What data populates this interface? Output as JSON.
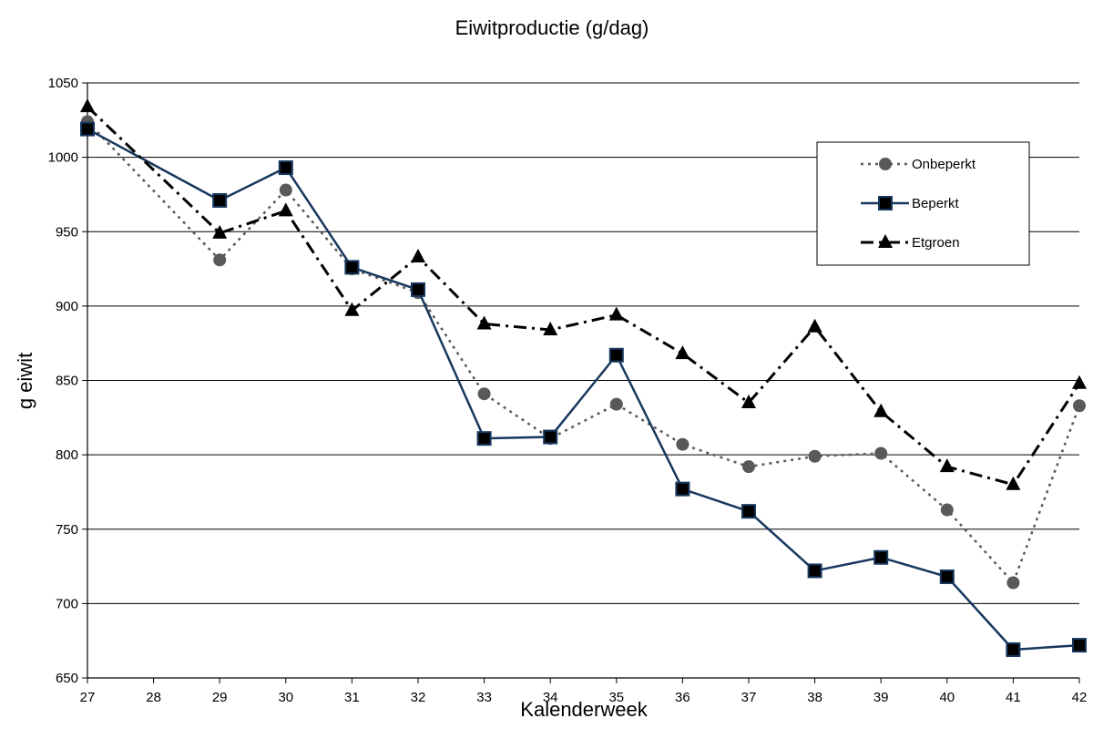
{
  "chart_data": {
    "type": "line",
    "title": "Eiwitproductie (g/dag)",
    "xlabel": "Kalenderweek",
    "ylabel": "g eiwit",
    "ylim": [
      650,
      1050
    ],
    "ytick_step": 50,
    "grid": "horizontal",
    "legend_position": "top-right",
    "categories": [
      "27",
      "28",
      "29",
      "30",
      "31",
      "32",
      "33",
      "34",
      "35",
      "36",
      "37",
      "38",
      "39",
      "40",
      "41",
      "42"
    ],
    "series": [
      {
        "name": "Onbeperkt",
        "color": "#595959",
        "marker": "circle",
        "line": "dotted",
        "values": [
          1024,
          null,
          931,
          978,
          925,
          909,
          841,
          811,
          834,
          807,
          792,
          799,
          801,
          763,
          714,
          833
        ]
      },
      {
        "name": "Beperkt",
        "color": "#17375e",
        "marker": "square",
        "line": "solid",
        "values": [
          1019,
          null,
          971,
          993,
          926,
          911,
          811,
          812,
          867,
          777,
          762,
          722,
          731,
          718,
          669,
          672
        ]
      },
      {
        "name": "Etgroen",
        "color": "#000000",
        "marker": "triangle",
        "line": "dashdot",
        "values": [
          1034,
          null,
          949,
          964,
          897,
          933,
          888,
          884,
          894,
          868,
          835,
          886,
          829,
          792,
          780,
          848
        ]
      }
    ]
  }
}
